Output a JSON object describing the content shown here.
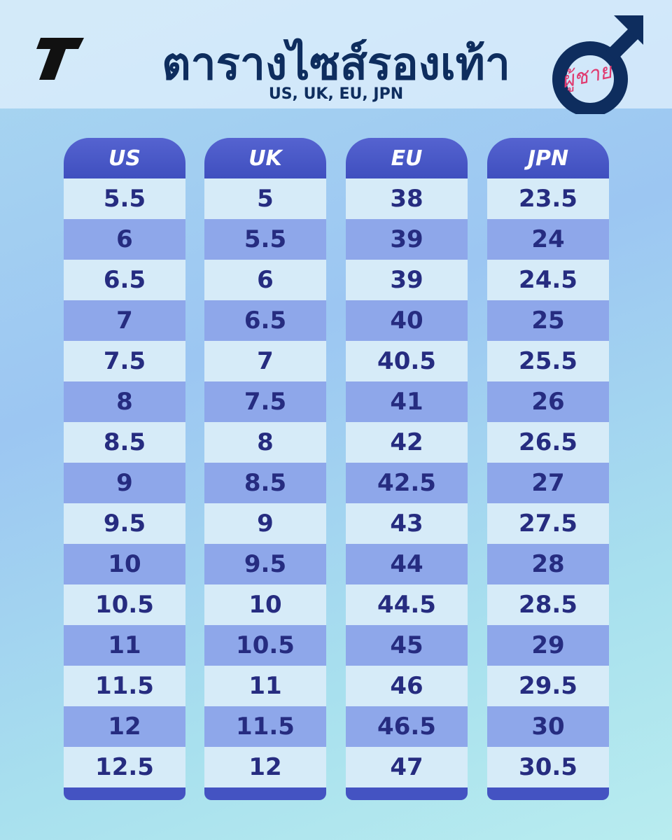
{
  "header": {
    "title": "ตารางไซส์รองเท้า",
    "subtitle": "US, UK, EU, JPN",
    "badge": "ผู้ชาย"
  },
  "table": {
    "columns": [
      {
        "header": "US",
        "values": [
          "5.5",
          "6",
          "6.5",
          "7",
          "7.5",
          "8",
          "8.5",
          "9",
          "9.5",
          "10",
          "10.5",
          "11",
          "11.5",
          "12",
          "12.5"
        ]
      },
      {
        "header": "UK",
        "values": [
          "5",
          "5.5",
          "6",
          "6.5",
          "7",
          "7.5",
          "8",
          "8.5",
          "9",
          "9.5",
          "10",
          "10.5",
          "11",
          "11.5",
          "12"
        ]
      },
      {
        "header": "EU",
        "values": [
          "38",
          "39",
          "39",
          "40",
          "40.5",
          "41",
          "42",
          "42.5",
          "43",
          "44",
          "44.5",
          "45",
          "46",
          "46.5",
          "47"
        ]
      },
      {
        "header": "JPN",
        "values": [
          "23.5",
          "24",
          "24.5",
          "25",
          "25.5",
          "26",
          "26.5",
          "27",
          "27.5",
          "28",
          "28.5",
          "29",
          "29.5",
          "30",
          "30.5"
        ]
      }
    ]
  }
}
